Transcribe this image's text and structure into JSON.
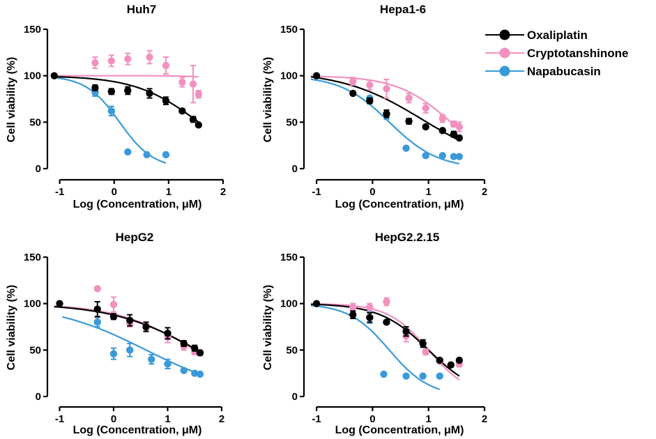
{
  "colors": {
    "oxaliplatin": "#000000",
    "cryptotanshinone": "#f291bf",
    "napabucasin": "#3a9ad9"
  },
  "legend": {
    "oxaliplatin": "Oxaliplatin",
    "cryptotanshinone": "Cryptotanshinone",
    "napabucasin": "Napabucasin"
  },
  "chart_data": [
    {
      "type": "scatter",
      "title": "Huh7",
      "xlabel": "Log (Concentration, μM)",
      "ylabel": "Cell viability (%)",
      "xlim": [
        -1.2,
        2
      ],
      "ylim": [
        0,
        150
      ],
      "xticks": [
        -1,
        0,
        1,
        2
      ],
      "yticks": [
        0,
        50,
        100,
        150
      ],
      "xtick_labels": [
        "-1",
        "0",
        "1",
        "2"
      ],
      "ytick_labels": [
        "0",
        "50",
        "100",
        "150"
      ],
      "series": [
        {
          "name": "Oxaliplatin",
          "key": "oxaliplatin",
          "x": [
            -1.1,
            -0.35,
            -0.05,
            0.25,
            0.65,
            0.95,
            1.25,
            1.45,
            1.55
          ],
          "y": [
            100,
            87,
            83,
            84,
            81,
            73,
            62,
            53,
            47
          ],
          "err": [
            0,
            3,
            3,
            4,
            5,
            4,
            2,
            3,
            2
          ],
          "fit": {
            "bottom": 0,
            "top": 100,
            "ec50": 1.55,
            "hill": 0.75
          }
        },
        {
          "name": "Cryptotanshinone",
          "key": "cryptotanshinone",
          "x": [
            -0.35,
            -0.05,
            0.25,
            0.65,
            0.95,
            1.25,
            1.45,
            1.55
          ],
          "y": [
            114,
            116,
            118,
            120,
            111,
            93,
            91,
            80
          ],
          "err": [
            6,
            6,
            6,
            7,
            9,
            5,
            20,
            4
          ],
          "fit": {
            "bottom": 0,
            "top": 100,
            "ec50": 2.8,
            "hill": 1.5
          }
        },
        {
          "name": "Napabucasin",
          "key": "napabucasin",
          "x": [
            -0.35,
            -0.05,
            0.25,
            0.6,
            0.95
          ],
          "y": [
            82,
            62,
            18,
            15,
            15
          ],
          "err": [
            4,
            5,
            0,
            0,
            0
          ],
          "fit": {
            "bottom": 0,
            "top": 100,
            "ec50": 0.1,
            "hill": 1.4,
            "xmax": 0.95
          }
        }
      ]
    },
    {
      "type": "scatter",
      "title": "Hepa1-6",
      "xlabel": "Log (Concentration, μM)",
      "ylabel": "Cell viability (%)",
      "xlim": [
        -1.2,
        2
      ],
      "ylim": [
        0,
        150
      ],
      "xticks": [
        -1,
        0,
        1,
        2
      ],
      "yticks": [
        0,
        50,
        100,
        150
      ],
      "xtick_labels": [
        "-1",
        "0",
        "1",
        "2"
      ],
      "ytick_labels": [
        "0",
        "50",
        "100",
        "150"
      ],
      "series": [
        {
          "name": "Oxaliplatin",
          "key": "oxaliplatin",
          "x": [
            -1.0,
            -0.35,
            -0.05,
            0.25,
            0.65,
            0.95,
            1.25,
            1.45,
            1.55
          ],
          "y": [
            100,
            81,
            73,
            59,
            51,
            45,
            41,
            37,
            33
          ],
          "err": [
            0,
            2,
            3,
            4,
            3,
            2,
            2,
            3,
            2
          ],
          "fit": {
            "bottom": 0,
            "top": 105,
            "ec50": 0.9,
            "hill": 0.6
          }
        },
        {
          "name": "Cryptotanshinone",
          "key": "cryptotanshinone",
          "x": [
            -0.35,
            -0.05,
            0.25,
            0.65,
            0.95,
            1.25,
            1.45,
            1.55
          ],
          "y": [
            94,
            90,
            86,
            76,
            65,
            54,
            48,
            45
          ],
          "err": [
            4,
            5,
            10,
            5,
            5,
            4,
            3,
            5
          ],
          "fit": {
            "bottom": 0,
            "top": 100,
            "ec50": 1.4,
            "hill": 0.9
          }
        },
        {
          "name": "Napabucasin",
          "key": "napabucasin",
          "x": [
            -0.05,
            0.25,
            0.6,
            0.95,
            1.25,
            1.45,
            1.55
          ],
          "y": [
            76,
            58,
            22,
            14,
            14,
            13,
            13
          ],
          "err": [
            0,
            5,
            0,
            0,
            0,
            0,
            0
          ],
          "fit": {
            "bottom": 0,
            "top": 100,
            "ec50": 0.3,
            "hill": 1.0
          }
        }
      ]
    },
    {
      "type": "scatter",
      "title": "HepG2",
      "xlabel": "Log (Concentration, μM)",
      "ylabel": "Cell viability (%)",
      "xlim": [
        -1.2,
        2
      ],
      "ylim": [
        0,
        150
      ],
      "xticks": [
        -1,
        0,
        1,
        2
      ],
      "yticks": [
        0,
        50,
        100,
        150
      ],
      "xtick_labels": [
        "-1",
        "0",
        "1",
        "2"
      ],
      "ytick_labels": [
        "0",
        "50",
        "100",
        "150"
      ],
      "series": [
        {
          "name": "Oxaliplatin",
          "key": "oxaliplatin",
          "x": [
            -1.0,
            -0.3,
            0.0,
            0.3,
            0.6,
            1.0,
            1.3,
            1.5,
            1.6
          ],
          "y": [
            100,
            94,
            86,
            82,
            75,
            68,
            57,
            52,
            47
          ],
          "err": [
            0,
            8,
            3,
            6,
            5,
            6,
            3,
            3,
            2
          ],
          "fit": {
            "bottom": 0,
            "top": 100,
            "ec50": 1.55,
            "hill": 0.55
          }
        },
        {
          "name": "Cryptotanshinone",
          "key": "cryptotanshinone",
          "x": [
            -0.3,
            0.0,
            0.3,
            0.6,
            1.0,
            1.3,
            1.5,
            1.6
          ],
          "y": [
            116,
            99,
            79,
            75,
            64,
            54,
            48,
            47
          ],
          "err": [
            0,
            8,
            4,
            4,
            6,
            4,
            3,
            3
          ],
          "fit": {
            "bottom": 0,
            "top": 100,
            "ec50": 1.5,
            "hill": 0.6
          }
        },
        {
          "name": "Napabucasin",
          "key": "napabucasin",
          "x": [
            -0.3,
            0.0,
            0.3,
            0.7,
            1.0,
            1.3,
            1.5,
            1.6
          ],
          "y": [
            80,
            46,
            50,
            40,
            35,
            28,
            25,
            24
          ],
          "err": [
            5,
            6,
            7,
            5,
            5,
            2,
            2,
            2
          ],
          "fit": {
            "bottom": 0,
            "top": 100,
            "ec50": 0.6,
            "hill": 0.5,
            "xmin": -0.95
          }
        }
      ]
    },
    {
      "type": "scatter",
      "title": "HepG2.2.15",
      "xlabel": "Log (Concentration, μM)",
      "ylabel": "Cell viability (%)",
      "xlim": [
        -1.2,
        2
      ],
      "ylim": [
        0,
        150
      ],
      "xticks": [
        -1,
        0,
        1,
        2
      ],
      "yticks": [
        0,
        50,
        100,
        150
      ],
      "xtick_labels": [
        "-1",
        "0",
        "1",
        "2"
      ],
      "ytick_labels": [
        "0",
        "50",
        "100",
        "150"
      ],
      "series": [
        {
          "name": "Oxaliplatin",
          "key": "oxaliplatin",
          "x": [
            -1.0,
            -0.35,
            -0.05,
            0.25,
            0.6,
            0.9,
            1.2,
            1.4,
            1.55
          ],
          "y": [
            100,
            88,
            85,
            80,
            70,
            57,
            39,
            34,
            39
          ],
          "err": [
            0,
            4,
            5,
            2,
            5,
            4,
            2,
            2,
            2
          ],
          "fit": {
            "bottom": 0,
            "top": 100,
            "ec50": 1.0,
            "hill": 1.0
          }
        },
        {
          "name": "Cryptotanshinone",
          "key": "cryptotanshinone",
          "x": [
            -0.35,
            -0.05,
            0.25,
            0.6,
            0.95,
            1.2,
            1.55
          ],
          "y": [
            96,
            96,
            102,
            65,
            48,
            38,
            35
          ],
          "err": [
            4,
            4,
            4,
            6,
            3,
            2,
            3
          ],
          "fit": {
            "bottom": 0,
            "top": 100,
            "ec50": 1.0,
            "hill": 1.2
          }
        },
        {
          "name": "Napabucasin",
          "key": "napabucasin",
          "x": [
            -0.05,
            0.2,
            0.6,
            0.9,
            1.2
          ],
          "y": [
            85,
            24,
            22,
            22,
            22
          ],
          "err": [
            6,
            0,
            0,
            0,
            0
          ],
          "fit": {
            "bottom": 0,
            "top": 100,
            "ec50": 0.3,
            "hill": 1.2,
            "xmax": 1.2
          }
        }
      ]
    }
  ]
}
